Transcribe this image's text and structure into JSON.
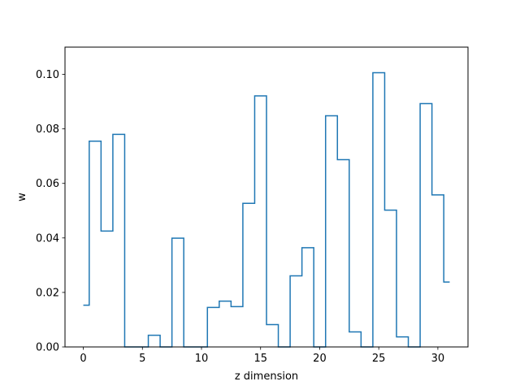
{
  "chart_data": {
    "type": "line",
    "drawstyle": "steps-mid",
    "title": "",
    "xlabel": "z dimension",
    "ylabel": "w",
    "xlim": [
      -1.55,
      32.55
    ],
    "ylim": [
      0,
      0.11
    ],
    "xticks": [
      0,
      5,
      10,
      15,
      20,
      25,
      30
    ],
    "xtick_labels": [
      "0",
      "5",
      "10",
      "15",
      "20",
      "25",
      "30"
    ],
    "yticks": [
      0,
      0.02,
      0.04,
      0.06,
      0.08,
      0.1
    ],
    "ytick_labels": [
      "0.00",
      "0.02",
      "0.04",
      "0.06",
      "0.08",
      "0.10"
    ],
    "grid": false,
    "series": [
      {
        "color": "#1f77b4",
        "x": [
          0,
          1,
          2,
          3,
          4,
          5,
          6,
          7,
          8,
          9,
          10,
          11,
          12,
          13,
          14,
          15,
          16,
          17,
          18,
          19,
          20,
          21,
          22,
          23,
          24,
          25,
          26,
          27,
          28,
          29,
          30,
          31
        ],
        "values": [
          0.0153,
          0.0755,
          0.0425,
          0.078,
          0.0,
          0.0,
          0.0043,
          0.0,
          0.0399,
          0.0,
          0.0,
          0.0145,
          0.0168,
          0.0148,
          0.0527,
          0.0921,
          0.0082,
          0.0,
          0.0261,
          0.0364,
          0.0,
          0.0848,
          0.0687,
          0.0055,
          0.0,
          0.1006,
          0.0502,
          0.0037,
          0.0,
          0.0893,
          0.0558,
          0.0238
        ]
      }
    ]
  }
}
